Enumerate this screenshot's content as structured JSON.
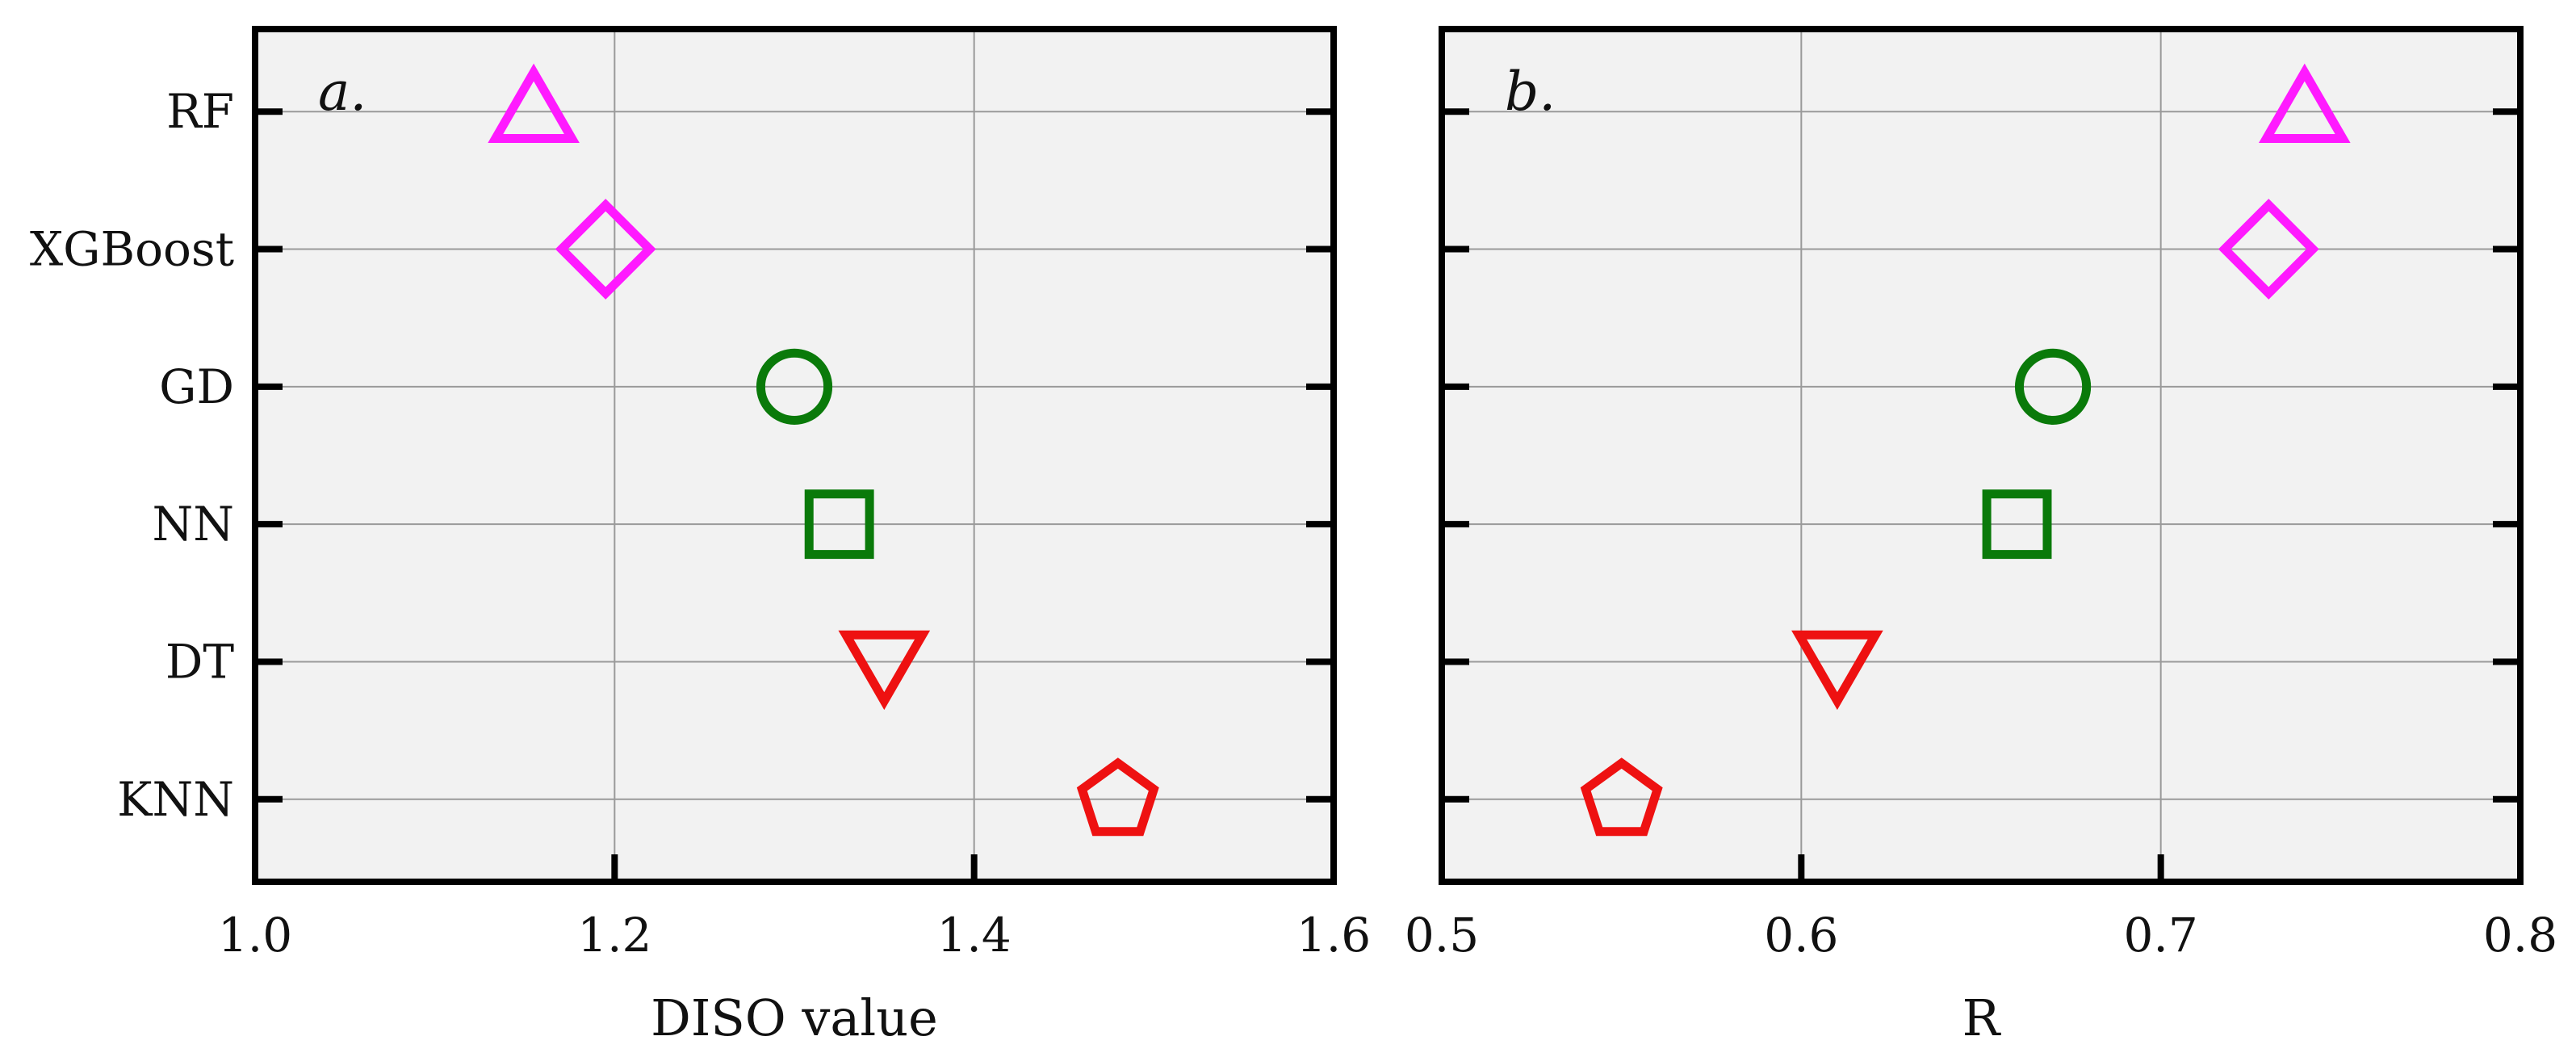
{
  "chart_data": [
    {
      "type": "scatter",
      "panel_tag": "a.",
      "xlabel": "DISO value",
      "ylabel": "",
      "xlim": [
        1.0,
        1.6
      ],
      "xticks": [
        1.0,
        1.2,
        1.4,
        1.6
      ],
      "xtick_labels": [
        "1.0",
        "1.2",
        "1.4",
        "1.6"
      ],
      "categories": [
        "RF",
        "XGBoost",
        "GD",
        "NN",
        "DT",
        "KNN"
      ],
      "grid": true,
      "background": "#f2f2f2",
      "points": [
        {
          "category": "RF",
          "value": 1.155,
          "marker": "triangle-up-icon",
          "color": "#ff1aff"
        },
        {
          "category": "XGBoost",
          "value": 1.195,
          "marker": "diamond-icon",
          "color": "#ff1aff"
        },
        {
          "category": "GD",
          "value": 1.3,
          "marker": "circle-icon",
          "color": "#0a7a0a"
        },
        {
          "category": "NN",
          "value": 1.325,
          "marker": "square-icon",
          "color": "#0a7a0a"
        },
        {
          "category": "DT",
          "value": 1.35,
          "marker": "triangle-down-icon",
          "color": "#ee1111"
        },
        {
          "category": "KNN",
          "value": 1.48,
          "marker": "pentagon-icon",
          "color": "#ee1111"
        }
      ]
    },
    {
      "type": "scatter",
      "panel_tag": "b.",
      "xlabel": "R",
      "ylabel": "",
      "xlim": [
        0.5,
        0.8
      ],
      "xticks": [
        0.5,
        0.6,
        0.7,
        0.8
      ],
      "xtick_labels": [
        "0.5",
        "0.6",
        "0.7",
        "0.8"
      ],
      "categories": [
        "RF",
        "XGBoost",
        "GD",
        "NN",
        "DT",
        "KNN"
      ],
      "grid": true,
      "background": "#f2f2f2",
      "points": [
        {
          "category": "RF",
          "value": 0.74,
          "marker": "triangle-up-icon",
          "color": "#ff1aff"
        },
        {
          "category": "XGBoost",
          "value": 0.73,
          "marker": "diamond-icon",
          "color": "#ff1aff"
        },
        {
          "category": "GD",
          "value": 0.67,
          "marker": "circle-icon",
          "color": "#0a7a0a"
        },
        {
          "category": "NN",
          "value": 0.66,
          "marker": "square-icon",
          "color": "#0a7a0a"
        },
        {
          "category": "DT",
          "value": 0.61,
          "marker": "triangle-down-icon",
          "color": "#ee1111"
        },
        {
          "category": "KNN",
          "value": 0.55,
          "marker": "pentagon-icon",
          "color": "#ee1111"
        }
      ]
    }
  ]
}
